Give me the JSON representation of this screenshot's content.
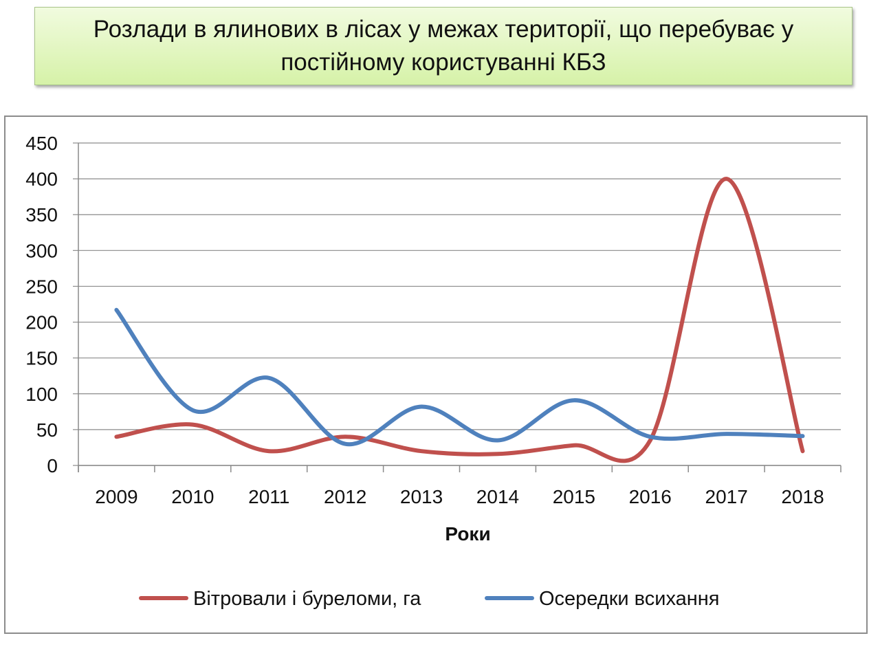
{
  "title": "Розлади в ялинових в лісах у межах території, що перебуває у постійному користуванні КБЗ",
  "chart_data": {
    "type": "line",
    "title": "Розлади в ялинових в лісах у межах території, що перебуває у постійному користуванні КБЗ",
    "categories": [
      "2009",
      "2010",
      "2011",
      "2012",
      "2013",
      "2014",
      "2015",
      "2016",
      "2017",
      "2018"
    ],
    "xlabel": "Роки",
    "ylabel": "",
    "ylim": [
      0,
      450
    ],
    "yticks": [
      0,
      50,
      100,
      150,
      200,
      250,
      300,
      350,
      400,
      450
    ],
    "grid": true,
    "smooth": true,
    "legend_position": "bottom",
    "series": [
      {
        "name": "Вітровали і буреломи, га",
        "color": "#c0504d",
        "values": [
          40,
          57,
          20,
          40,
          20,
          16,
          28,
          35,
          400,
          20
        ]
      },
      {
        "name": "Осередки всихання",
        "color": "#4f81bd",
        "values": [
          217,
          77,
          122,
          30,
          82,
          35,
          91,
          40,
          44,
          41
        ]
      }
    ]
  }
}
